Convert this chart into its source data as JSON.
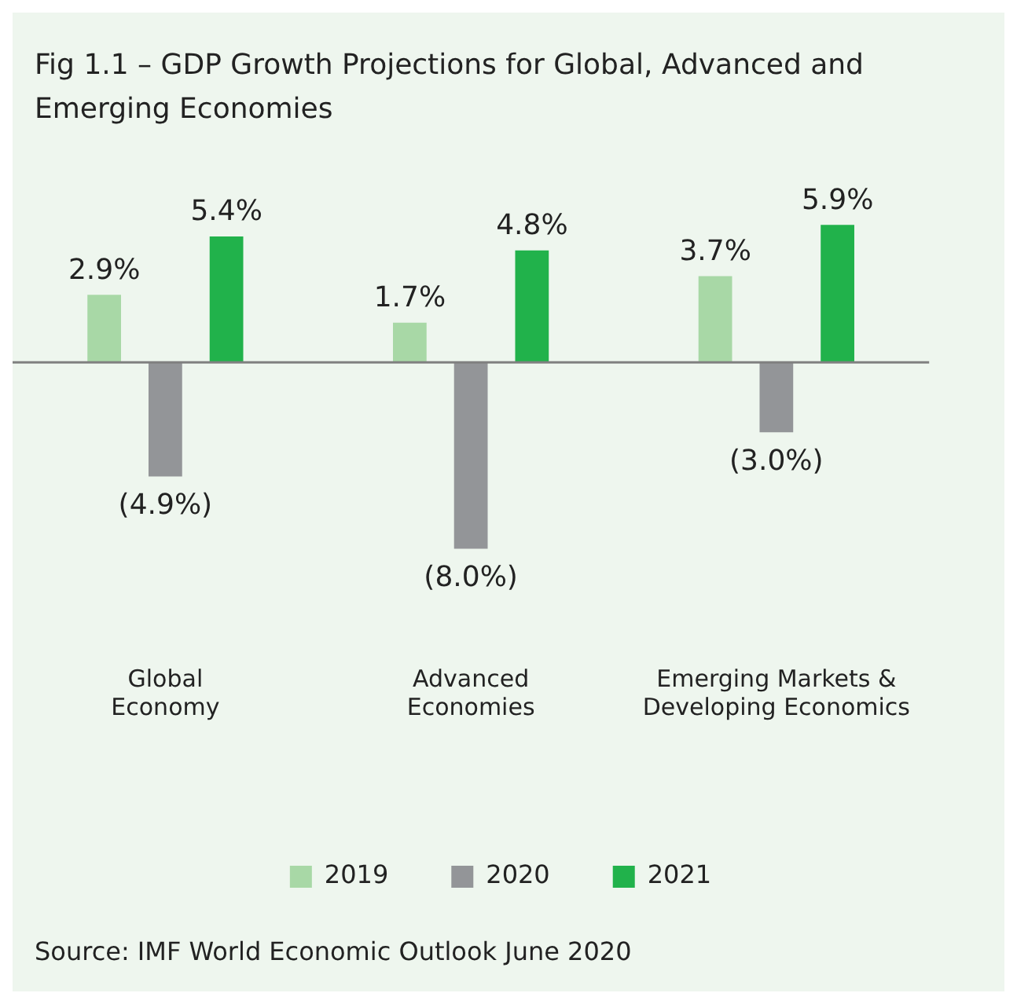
{
  "chart_data": {
    "type": "bar",
    "title": "Fig 1.1 – GDP Growth Projections for Global, Advanced and Emerging Economies",
    "categories": [
      "Global Economy",
      "Advanced Economies",
      "Emerging Markets & Developing Economics"
    ],
    "series": [
      {
        "name": "2019",
        "color": "#a8d8a6",
        "values": [
          2.9,
          1.7,
          3.7
        ],
        "value_labels": [
          "2.9%",
          "1.7%",
          "3.7%"
        ]
      },
      {
        "name": "2020",
        "color": "#939598",
        "values": [
          -4.9,
          -8.0,
          -3.0
        ],
        "value_labels": [
          "(4.9%)",
          "(8.0%)",
          "(3.0%)"
        ]
      },
      {
        "name": "2021",
        "color": "#21b24b",
        "values": [
          5.4,
          4.8,
          5.9
        ],
        "value_labels": [
          "5.4%",
          "4.8%",
          "5.9%"
        ]
      }
    ],
    "legend": "bottom",
    "grid": false,
    "annotations": [
      "Source: IMF World Economic Outlook June 2020"
    ]
  }
}
